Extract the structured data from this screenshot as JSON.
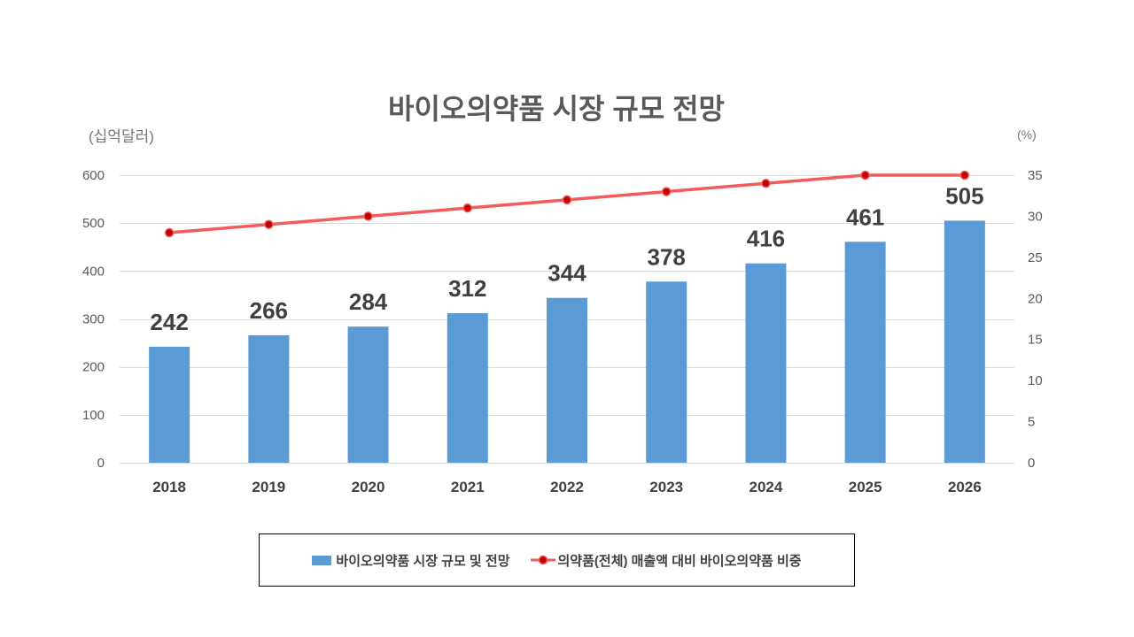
{
  "chart_data": {
    "type": "bar",
    "title": "바이오의약품 시장 규모 전망",
    "categories": [
      "2018",
      "2019",
      "2020",
      "2021",
      "2022",
      "2023",
      "2024",
      "2025",
      "2026"
    ],
    "series": [
      {
        "name": "바이오의약품 시장 규모 및 전망",
        "type": "bar",
        "axis": "left",
        "values": [
          242,
          266,
          284,
          312,
          344,
          378,
          416,
          461,
          505
        ],
        "data_labels": true,
        "color": "#5B9BD5"
      },
      {
        "name": "의약품(전체) 매출액 대비 바이오의약품 비중",
        "type": "line",
        "axis": "right",
        "values": [
          28,
          29,
          30,
          31,
          32,
          33,
          34,
          35,
          35
        ],
        "data_labels": false,
        "color": "#F25C5C",
        "marker_color": "#C00000"
      }
    ],
    "y_left": {
      "label": "(십억달러)",
      "min": 0,
      "max": 600,
      "ticks": [
        0,
        100,
        200,
        300,
        400,
        500,
        600
      ]
    },
    "y_right": {
      "label": "(%)",
      "min": 0,
      "max": 35,
      "ticks": [
        0,
        5,
        10,
        15,
        20,
        25,
        30,
        35
      ]
    },
    "grid": true,
    "gridline_color": "#D9D9D9",
    "legend_position": "bottom"
  }
}
